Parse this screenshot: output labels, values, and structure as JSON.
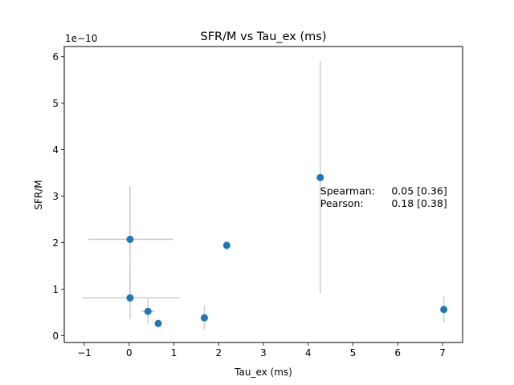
{
  "chart_data": {
    "type": "scatter",
    "title": "SFR/M vs Tau_ex (ms)",
    "xlabel": "Tau_ex (ms)",
    "ylabel": "SFR/M",
    "y_offset_text": "1e−10",
    "xlim": [
      -1.45,
      7.45
    ],
    "ylim": [
      -0.15,
      6.22
    ],
    "grid": false,
    "x_ticks": [
      -1,
      0,
      1,
      2,
      3,
      4,
      5,
      6,
      7
    ],
    "x_tick_labels": [
      "−1",
      "0",
      "1",
      "2",
      "3",
      "4",
      "5",
      "6",
      "7"
    ],
    "y_ticks": [
      0,
      1,
      2,
      3,
      4,
      5,
      6
    ],
    "y_tick_labels": [
      "0",
      "1",
      "2",
      "3",
      "4",
      "5",
      "6"
    ],
    "marker_color": "#1f77b4",
    "errorbar_color": "#cccccc",
    "points": [
      {
        "x": 0.02,
        "y": 2.07,
        "xerr": [
          0.94,
          0.96
        ],
        "yerr": [
          1.15,
          1.15
        ]
      },
      {
        "x": 0.02,
        "y": 0.81,
        "xerr": [
          1.06,
          1.12
        ],
        "yerr": [
          0.45,
          0.45
        ]
      },
      {
        "x": 0.42,
        "y": 0.52,
        "xerr": [
          0.15,
          0.15
        ],
        "yerr": [
          0.27,
          0.27
        ]
      },
      {
        "x": 0.65,
        "y": 0.26,
        "xerr": [
          0.0,
          0.0
        ],
        "yerr": [
          0.09,
          0.09
        ]
      },
      {
        "x": 1.68,
        "y": 0.38,
        "xerr": [
          0.0,
          0.0
        ],
        "yerr": [
          0.26,
          0.26
        ]
      },
      {
        "x": 2.18,
        "y": 1.94,
        "xerr": [
          0.0,
          0.0
        ],
        "yerr": [
          0.1,
          0.1
        ]
      },
      {
        "x": 4.27,
        "y": 3.4,
        "xerr": [
          0.0,
          0.0
        ],
        "yerr": [
          2.5,
          2.5
        ]
      },
      {
        "x": 7.03,
        "y": 0.56,
        "xerr": [
          0.0,
          0.0
        ],
        "yerr": [
          0.28,
          0.28
        ]
      }
    ],
    "annotations": [
      {
        "label": "Spearman:",
        "value": "0.05 [0.36]",
        "x": 4.27,
        "y": 3.1
      },
      {
        "label": "Pearson:",
        "value": "0.18 [0.38]",
        "x": 4.27,
        "y": 2.84
      }
    ]
  }
}
